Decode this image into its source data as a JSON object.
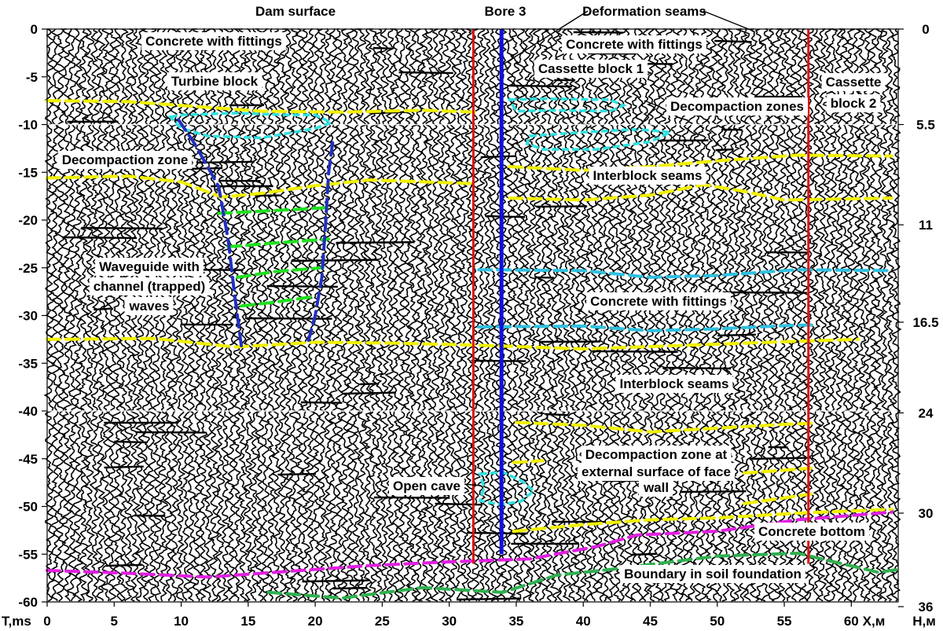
{
  "chart_data": {
    "type": "seismic-section",
    "axis_left": {
      "label": "T,ms",
      "ticks": [
        0,
        -5,
        -10,
        -15,
        -20,
        -25,
        -30,
        -35,
        -40,
        -45,
        -50,
        -55,
        -60
      ],
      "range": [
        -60,
        0
      ]
    },
    "axis_bottom": {
      "label": "X,м",
      "ticks": [
        0,
        5,
        10,
        15,
        20,
        25,
        30,
        35,
        40,
        45,
        50,
        55,
        60
      ],
      "range": [
        0,
        63.5
      ]
    },
    "axis_right": {
      "label": "H,м",
      "ticks": [
        {
          "label": "0",
          "t": 0
        },
        {
          "label": "5.5",
          "t": -10
        },
        {
          "label": "11",
          "t": -20.5
        },
        {
          "label": "16.5",
          "t": -30.7
        },
        {
          "label": "24",
          "t": -40.2
        },
        {
          "label": "30",
          "t": -50.7
        },
        {
          "label": "36",
          "t": -61
        }
      ]
    },
    "vertical_markers": [
      {
        "name": "Bore 3",
        "x": 33.9,
        "color": "#1010e0",
        "t_from": 0,
        "t_to": -55
      },
      {
        "name": "",
        "x": 31.8,
        "color": "#e01010",
        "t_from": 0,
        "t_to": -56
      },
      {
        "name": "",
        "x": 56.8,
        "color": "#e01010",
        "t_from": 0,
        "t_to": -56
      }
    ],
    "lines": [
      {
        "color": "#f0f000",
        "dash": true,
        "points": [
          [
            0,
            -7.5
          ],
          [
            6,
            -7.6
          ],
          [
            10,
            -8
          ],
          [
            16,
            -8.6
          ],
          [
            22,
            -8.7
          ],
          [
            28,
            -8.5
          ],
          [
            32,
            -8.7
          ]
        ]
      },
      {
        "color": "#f0f000",
        "dash": true,
        "points": [
          [
            0,
            -15.6
          ],
          [
            6,
            -15.4
          ],
          [
            10,
            -16
          ],
          [
            13,
            -17.6
          ],
          [
            16,
            -17.2
          ],
          [
            20,
            -16.4
          ],
          [
            24,
            -15.8
          ],
          [
            28,
            -16
          ],
          [
            32,
            -16.2
          ]
        ]
      },
      {
        "color": "#f0f000",
        "dash": true,
        "points": [
          [
            34.5,
            -14.4
          ],
          [
            40,
            -14.8
          ],
          [
            45,
            -14.4
          ],
          [
            50,
            -13.8
          ],
          [
            56,
            -13.2
          ],
          [
            63,
            -13.3
          ]
        ]
      },
      {
        "color": "#f0f000",
        "dash": true,
        "points": [
          [
            34.5,
            -17.7
          ],
          [
            40,
            -17.9
          ],
          [
            45,
            -17.4
          ],
          [
            49,
            -16.3
          ],
          [
            52,
            -17
          ],
          [
            55,
            -17.9
          ],
          [
            63,
            -17.7
          ]
        ]
      },
      {
        "color": "#f0f000",
        "dash": true,
        "points": [
          [
            0,
            -32.5
          ],
          [
            8,
            -32.4
          ],
          [
            14,
            -33.3
          ],
          [
            20,
            -32.8
          ],
          [
            26,
            -32.9
          ],
          [
            32,
            -33.1
          ],
          [
            40,
            -33.5
          ],
          [
            48,
            -33.1
          ],
          [
            56,
            -32.7
          ],
          [
            60.5,
            -32.5
          ]
        ]
      },
      {
        "color": "#f0f000",
        "dash": true,
        "points": [
          [
            35,
            -41.2
          ],
          [
            40,
            -41.5
          ],
          [
            45,
            -42.2
          ],
          [
            50,
            -41.8
          ],
          [
            55,
            -41.4
          ],
          [
            57,
            -41.3
          ]
        ]
      },
      {
        "color": "#f0f000",
        "dash": true,
        "points": [
          [
            34.8,
            -45.4
          ],
          [
            37,
            -45.2
          ]
        ]
      },
      {
        "color": "#f0f000",
        "dash": true,
        "points": [
          [
            52,
            -46.5
          ],
          [
            57,
            -46
          ]
        ]
      },
      {
        "color": "#f0f000",
        "dash": true,
        "points": [
          [
            52,
            -49.7
          ],
          [
            57,
            -48.7
          ]
        ]
      },
      {
        "color": "#f0f000",
        "dash": true,
        "points": [
          [
            34.8,
            -52.6
          ],
          [
            40,
            -51.9
          ],
          [
            45,
            -51.4
          ],
          [
            50,
            -51.2
          ],
          [
            56,
            -50.7
          ],
          [
            63,
            -50.3
          ]
        ]
      },
      {
        "color": "#30c0e0",
        "dash": true,
        "points": [
          [
            32.2,
            -25.2
          ],
          [
            40,
            -25.3
          ],
          [
            45,
            -26
          ],
          [
            50,
            -25.8
          ],
          [
            56,
            -25.2
          ],
          [
            63,
            -25.3
          ]
        ]
      },
      {
        "color": "#30c0e0",
        "dash": true,
        "points": [
          [
            32.2,
            -31.2
          ],
          [
            40,
            -31.1
          ],
          [
            45,
            -31.6
          ],
          [
            50,
            -31.4
          ],
          [
            56,
            -31
          ],
          [
            57.5,
            -31
          ]
        ]
      },
      {
        "color": "#e020e0",
        "dash": true,
        "points": [
          [
            0,
            -56.7
          ],
          [
            6,
            -57
          ],
          [
            12,
            -57.4
          ],
          [
            18,
            -56.8
          ],
          [
            24,
            -56.2
          ],
          [
            30,
            -55.8
          ],
          [
            36,
            -55.5
          ],
          [
            41,
            -54.2
          ],
          [
            44,
            -53
          ],
          [
            50,
            -52.6
          ],
          [
            56,
            -51.4
          ],
          [
            63,
            -50.6
          ]
        ]
      },
      {
        "color": "#30b050",
        "dash": true,
        "points": [
          [
            16.5,
            -59
          ],
          [
            22,
            -59.6
          ],
          [
            28,
            -58.5
          ],
          [
            34,
            -59
          ],
          [
            38,
            -57.2
          ],
          [
            42,
            -56.6
          ],
          [
            50,
            -55.2
          ],
          [
            56,
            -54.9
          ],
          [
            62,
            -56.9
          ],
          [
            63.5,
            -56.6
          ]
        ]
      },
      {
        "color": "#20e020",
        "dash": true,
        "points": [
          [
            12.8,
            -19.3
          ],
          [
            17,
            -19
          ],
          [
            21,
            -18.7
          ]
        ]
      },
      {
        "color": "#20e020",
        "dash": true,
        "points": [
          [
            13.5,
            -22.8
          ],
          [
            17,
            -22.4
          ],
          [
            21,
            -22
          ]
        ]
      },
      {
        "color": "#20e020",
        "dash": true,
        "points": [
          [
            14.2,
            -26
          ],
          [
            17,
            -25.4
          ],
          [
            20.5,
            -25
          ]
        ]
      },
      {
        "color": "#20e020",
        "dash": true,
        "points": [
          [
            14.5,
            -29
          ],
          [
            17,
            -28.6
          ],
          [
            20,
            -28
          ]
        ]
      },
      {
        "color": "#2030c0",
        "dash": true,
        "points": [
          [
            9.8,
            -9.5
          ],
          [
            11,
            -12
          ],
          [
            12.8,
            -16.5
          ],
          [
            13.5,
            -22
          ],
          [
            14,
            -28
          ],
          [
            14.5,
            -33.3
          ]
        ]
      },
      {
        "color": "#2030c0",
        "dash": true,
        "points": [
          [
            21.3,
            -11.9
          ],
          [
            21,
            -15
          ],
          [
            20.8,
            -20
          ],
          [
            20.5,
            -26
          ],
          [
            20,
            -30
          ],
          [
            19.5,
            -32.6
          ]
        ]
      }
    ],
    "zones": [
      {
        "color": "#30e0e0",
        "points": [
          [
            9.2,
            -9.2
          ],
          [
            10,
            -9
          ],
          [
            14,
            -8.8
          ],
          [
            18,
            -9
          ],
          [
            20,
            -9
          ],
          [
            21.2,
            -9.8
          ],
          [
            20,
            -10.4
          ],
          [
            16,
            -11.4
          ],
          [
            12,
            -11.2
          ],
          [
            10,
            -10.4
          ]
        ]
      },
      {
        "color": "#30e0e0",
        "points": [
          [
            34.5,
            -7.4
          ],
          [
            37,
            -7.3
          ],
          [
            42,
            -7.4
          ],
          [
            43,
            -8
          ],
          [
            42,
            -8.6
          ],
          [
            38,
            -8.5
          ],
          [
            35,
            -8.6
          ]
        ]
      },
      {
        "color": "#30e0e0",
        "points": [
          [
            36,
            -11.2
          ],
          [
            40,
            -10.8
          ],
          [
            44,
            -10.5
          ],
          [
            46.5,
            -10.8
          ],
          [
            45,
            -11.8
          ],
          [
            41,
            -12.6
          ],
          [
            37,
            -12.6
          ],
          [
            35.8,
            -12
          ]
        ]
      },
      {
        "color": "#30e0e0",
        "points": [
          [
            32.3,
            -46.6
          ],
          [
            34,
            -46.4
          ],
          [
            35.5,
            -47.4
          ],
          [
            36.3,
            -48.4
          ],
          [
            35.3,
            -49.5
          ],
          [
            33.8,
            -49.8
          ],
          [
            32.3,
            -49.4
          ],
          [
            32.6,
            -48
          ]
        ]
      }
    ],
    "annotations": [
      {
        "text": "Dam surface",
        "t_pos": "outside-top"
      },
      {
        "text": "Bore 3",
        "t_pos": "outside-top"
      },
      {
        "text": "Deformation seams",
        "t_pos": "outside-top"
      },
      {
        "text": "Concrete with fittings"
      },
      {
        "text": "Turbine block"
      },
      {
        "text": "Concrete with fittings"
      },
      {
        "text": "Cassette block 1"
      },
      {
        "text": "Cassette"
      },
      {
        "text": "block 2"
      },
      {
        "text": "Decompaction zones"
      },
      {
        "text": "Decompaction zone"
      },
      {
        "text": "Interblock seams"
      },
      {
        "text": "Waveguide with"
      },
      {
        "text": "channel (trapped)"
      },
      {
        "text": "waves"
      },
      {
        "text": "Concrete with fittings"
      },
      {
        "text": "Interblock seams"
      },
      {
        "text": "Decompaction zone at"
      },
      {
        "text": "external surface of face"
      },
      {
        "text": "wall"
      },
      {
        "text": "Open cave"
      },
      {
        "text": "Concrete bottom"
      },
      {
        "text": "Boundary in soil foundation"
      }
    ],
    "colors": {
      "trace": "#000000",
      "background": "#ffffff",
      "horizon_yellow": "#f0f000",
      "horizon_cyan": "#30c0e0",
      "concrete_bottom": "#e020e0",
      "soil_boundary": "#30b050",
      "waveguide_green": "#20e020",
      "decompaction": "#30e0e0",
      "waveguide_edge": "#2030c0",
      "bore": "#1010e0",
      "seam_marker": "#e01010"
    }
  }
}
